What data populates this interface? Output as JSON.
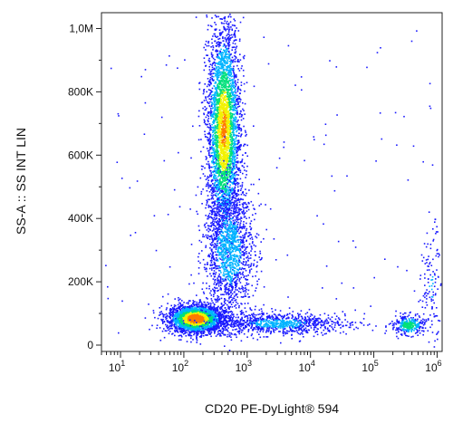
{
  "chart_data": {
    "type": "scatter",
    "style": "flow-cytometry density dot plot",
    "xlabel": "CD20 PE-DyLight® 594",
    "ylabel": "SS-A :: SS INT LIN",
    "x_scale": "log",
    "x_ticks": [
      {
        "value": 10,
        "base": "10",
        "exp": "1"
      },
      {
        "value": 100,
        "base": "10",
        "exp": "2"
      },
      {
        "value": 1000,
        "base": "10",
        "exp": "3"
      },
      {
        "value": 10000,
        "base": "10",
        "exp": "4"
      },
      {
        "value": 100000,
        "base": "10",
        "exp": "5"
      },
      {
        "value": 1000000,
        "base": "10",
        "exp": "6"
      }
    ],
    "xlim": [
      5,
      1200000
    ],
    "y_scale": "linear",
    "y_ticks": [
      {
        "value": 0,
        "label": "0"
      },
      {
        "value": 200000,
        "label": "200K"
      },
      {
        "value": 400000,
        "label": "400K"
      },
      {
        "value": 600000,
        "label": "600K"
      },
      {
        "value": 800000,
        "label": "800K"
      },
      {
        "value": 1000000,
        "label": "1,0M"
      }
    ],
    "ylim": [
      -20000,
      1050000
    ],
    "grid": false,
    "density_colormap": [
      "#1a1aff",
      "#00b4ff",
      "#00e07a",
      "#f2f200",
      "#ff7a00",
      "#ff1a1a"
    ],
    "populations": [
      {
        "x_center": 150,
        "x_spread_decades": 0.22,
        "y_center": 85000,
        "y_spread": 22000,
        "count": 2600,
        "peak_density": 1.0
      },
      {
        "x_center": 420,
        "x_spread_decades": 0.13,
        "y_center": 680000,
        "y_spread": 170000,
        "count": 3400,
        "peak_density": 0.82
      },
      {
        "x_center": 500,
        "x_spread_decades": 0.2,
        "y_center": 300000,
        "y_spread": 110000,
        "count": 1500,
        "peak_density": 0.3
      },
      {
        "x_center": 3000,
        "x_spread_decades": 0.55,
        "y_center": 70000,
        "y_spread": 18000,
        "count": 900,
        "peak_density": 0.25
      },
      {
        "x_center": 350000,
        "x_spread_decades": 0.13,
        "y_center": 65000,
        "y_spread": 15000,
        "count": 320,
        "peak_density": 0.55
      },
      {
        "x_center": 800000,
        "x_spread_decades": 0.08,
        "y_center": 200000,
        "y_spread": 90000,
        "count": 120,
        "peak_density": 0.2
      }
    ],
    "sparse_events": 140
  }
}
